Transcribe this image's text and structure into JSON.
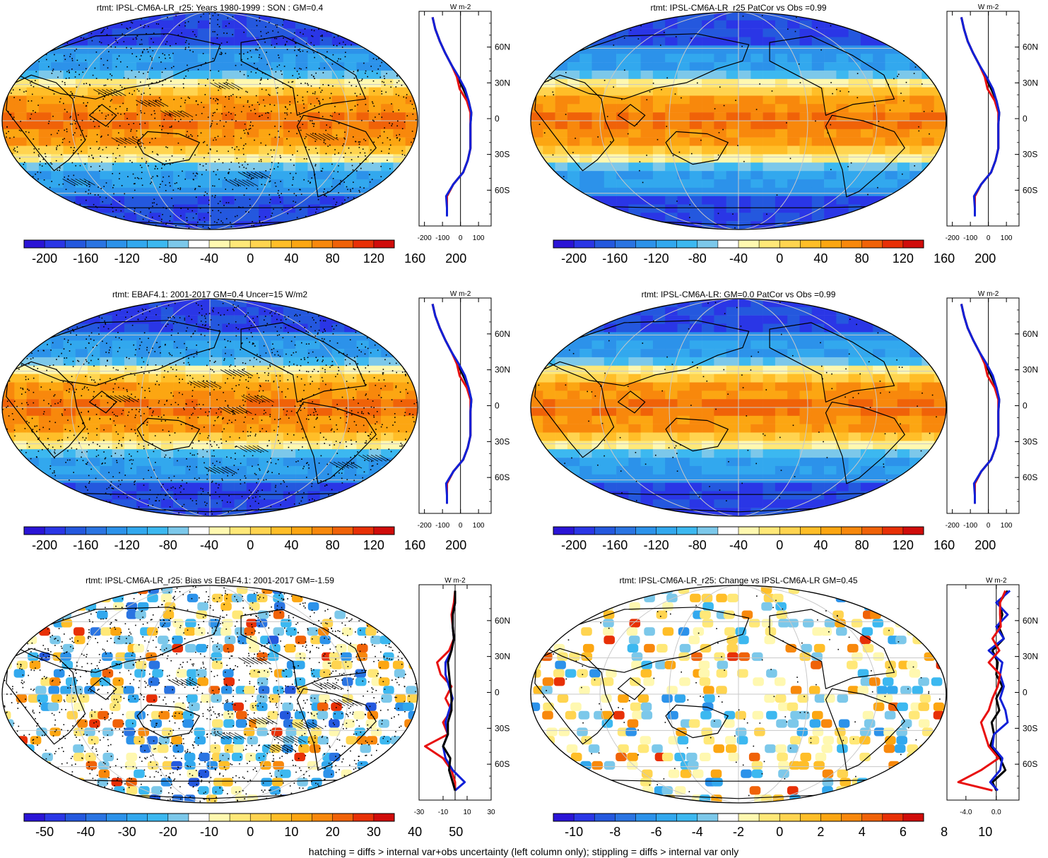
{
  "footer": "hatching = diffs > internal var+obs uncertainty (left column only); stippling = diffs > internal var only",
  "colors": {
    "scale": [
      "#2a14d6",
      "#2a36e6",
      "#2458de",
      "#2a74e2",
      "#2c92ea",
      "#32a8ee",
      "#3cb8f0",
      "#7cc8ea",
      "#ffffff",
      "#fff8b0",
      "#ffe878",
      "#ffd450",
      "#ffbe28",
      "#fca612",
      "#f8880c",
      "#f06208",
      "#e83006",
      "#d00c0a"
    ],
    "coast": "#000000",
    "grid": "#c8c8c8",
    "model_line": "#000000",
    "obs_line": "#e81010",
    "alt_line": "#1020d8"
  },
  "panels": [
    {
      "title": "rtmt: IPSL-CM6A-LR_r25: Years 1980-1999 : SON : GM=0.4",
      "field": "mean",
      "stipple": "dense",
      "hatch": true,
      "colorbar_labels": [
        "-200",
        "-160",
        "-120",
        "-80",
        "-40",
        "0",
        "40",
        "80",
        "120",
        "160",
        "200"
      ]
    },
    {
      "title": "rtmt: IPSL-CM6A-LR_r25 PatCor vs Obs =0.99",
      "field": "mean",
      "stipple": "sparse",
      "hatch": false,
      "colorbar_labels": [
        "-200",
        "-160",
        "-120",
        "-80",
        "-40",
        "0",
        "40",
        "80",
        "120",
        "160",
        "200"
      ]
    },
    {
      "title": "rtmt: EBAF4.1: 2001-2017 GM=0.4 Uncer=15 W/m2",
      "field": "mean",
      "stipple": "dense",
      "hatch": true,
      "colorbar_labels": [
        "-200",
        "-160",
        "-120",
        "-80",
        "-40",
        "0",
        "40",
        "80",
        "120",
        "160",
        "200"
      ]
    },
    {
      "title": "rtmt: IPSL-CM6A-LR: GM=0.0 PatCor vs Obs =0.99",
      "field": "mean",
      "stipple": "sparse",
      "hatch": false,
      "colorbar_labels": [
        "-200",
        "-160",
        "-120",
        "-80",
        "-40",
        "0",
        "40",
        "80",
        "120",
        "160",
        "200"
      ]
    },
    {
      "title": "rtmt: IPSL-CM6A-LR_r25: Bias vs EBAF4.1: 2001-2017  GM=-1.59",
      "field": "bias",
      "stipple": "dense",
      "hatch": true,
      "colorbar_labels": [
        "-50",
        "-40",
        "-30",
        "-20",
        "-10",
        "0",
        "10",
        "20",
        "30",
        "40",
        "50"
      ]
    },
    {
      "title": "rtmt: IPSL-CM6A-LR_r25: Change vs IPSL-CM6A-LR GM=0.45",
      "field": "change",
      "stipple": "sparse",
      "hatch": false,
      "colorbar_labels": [
        "-10",
        "-8",
        "-6",
        "-4",
        "-2",
        "0",
        "2",
        "4",
        "6",
        "8",
        "10"
      ]
    }
  ],
  "chart_data": {
    "type": "line",
    "profiles": [
      {
        "unit": "W m-2",
        "lat_labels": [
          "60N",
          "30N",
          "0",
          "30S",
          "60S"
        ],
        "x_labels": [
          "-200",
          "-100",
          "0",
          "100"
        ],
        "xlim": [
          -230,
          170
        ],
        "lat": [
          85,
          75,
          65,
          55,
          45,
          35,
          25,
          15,
          5,
          -5,
          -15,
          -25,
          -35,
          -45,
          -55,
          -65,
          -75,
          -82
        ],
        "series": [
          {
            "role": "model",
            "values": [
              -155,
              -140,
              -115,
              -85,
              -50,
              -15,
              15,
              45,
              60,
              55,
              55,
              55,
              40,
              15,
              -40,
              -75,
              -75,
              -75
            ]
          },
          {
            "role": "obs",
            "values": [
              -155,
              -140,
              -115,
              -85,
              -50,
              -20,
              -5,
              35,
              55,
              55,
              55,
              55,
              40,
              15,
              -40,
              -75,
              -75,
              -75
            ]
          },
          {
            "role": "alt",
            "values": [
              -155,
              -140,
              -115,
              -85,
              -50,
              -10,
              25,
              45,
              60,
              55,
              55,
              55,
              40,
              15,
              -40,
              -80,
              -75,
              -75
            ]
          }
        ]
      },
      {
        "unit": "W m-2",
        "lat_labels": [
          "60N",
          "30N",
          "0",
          "30S",
          "60S"
        ],
        "x_labels": [
          "-200",
          "-100",
          "0",
          "100"
        ],
        "xlim": [
          -230,
          170
        ],
        "lat": [
          85,
          75,
          65,
          55,
          45,
          35,
          25,
          15,
          5,
          -5,
          -15,
          -25,
          -35,
          -45,
          -55,
          -65,
          -75,
          -82
        ],
        "series": [
          {
            "role": "model",
            "values": [
              -150,
              -135,
              -115,
              -85,
              -50,
              -15,
              15,
              45,
              60,
              55,
              55,
              55,
              40,
              15,
              -40,
              -75,
              -75,
              -75
            ]
          },
          {
            "role": "obs",
            "values": [
              -150,
              -135,
              -115,
              -85,
              -50,
              -20,
              -5,
              35,
              55,
              55,
              55,
              55,
              40,
              15,
              -40,
              -75,
              -75,
              -75
            ]
          },
          {
            "role": "alt",
            "values": [
              -150,
              -135,
              -115,
              -85,
              -50,
              -10,
              25,
              45,
              60,
              55,
              55,
              55,
              40,
              15,
              -40,
              -80,
              -75,
              -75
            ]
          }
        ]
      },
      {
        "unit": "W m-2",
        "lat_labels": [
          "60N",
          "30N",
          "0",
          "30S",
          "60S"
        ],
        "x_labels": [
          "-200",
          "-100",
          "0",
          "100"
        ],
        "xlim": [
          -230,
          170
        ],
        "lat": [
          85,
          75,
          65,
          55,
          45,
          35,
          25,
          15,
          5,
          -5,
          -15,
          -25,
          -35,
          -45,
          -55,
          -65,
          -75,
          -82
        ],
        "series": [
          {
            "role": "model",
            "values": [
              -155,
              -140,
              -115,
              -85,
              -50,
              -15,
              15,
              45,
              60,
              55,
              55,
              55,
              40,
              15,
              -40,
              -75,
              -75,
              -75
            ]
          },
          {
            "role": "obs",
            "values": [
              -155,
              -140,
              -115,
              -85,
              -50,
              -20,
              -5,
              35,
              55,
              55,
              55,
              55,
              40,
              15,
              -40,
              -75,
              -75,
              -75
            ]
          },
          {
            "role": "alt",
            "values": [
              -155,
              -140,
              -115,
              -85,
              -50,
              -10,
              25,
              45,
              60,
              55,
              55,
              55,
              40,
              15,
              -40,
              -80,
              -75,
              -75
            ]
          }
        ]
      },
      {
        "unit": "W m-2",
        "lat_labels": [
          "60N",
          "30N",
          "0",
          "30S",
          "60S"
        ],
        "x_labels": [
          "-200",
          "-100",
          "0",
          "100"
        ],
        "xlim": [
          -230,
          170
        ],
        "lat": [
          85,
          75,
          65,
          55,
          45,
          35,
          25,
          15,
          5,
          -5,
          -15,
          -25,
          -35,
          -45,
          -55,
          -65,
          -75,
          -82
        ],
        "series": [
          {
            "role": "model",
            "values": [
              -150,
              -135,
              -115,
              -85,
              -50,
              -15,
              15,
              45,
              60,
              55,
              55,
              55,
              40,
              15,
              -40,
              -75,
              -75,
              -75
            ]
          },
          {
            "role": "obs",
            "values": [
              -150,
              -135,
              -115,
              -85,
              -50,
              -20,
              -5,
              35,
              55,
              55,
              55,
              55,
              40,
              15,
              -40,
              -75,
              -75,
              -75
            ]
          },
          {
            "role": "alt",
            "values": [
              -150,
              -135,
              -115,
              -85,
              -50,
              -10,
              25,
              45,
              60,
              55,
              55,
              55,
              40,
              15,
              -40,
              -80,
              -75,
              -75
            ]
          }
        ]
      },
      {
        "unit": "W m-2",
        "lat_labels": [
          "60N",
          "30N",
          "0",
          "30S",
          "60S"
        ],
        "x_labels": [
          "-30",
          "-10",
          "10",
          "30"
        ],
        "xlim": [
          -30,
          30
        ],
        "lat": [
          85,
          75,
          65,
          55,
          45,
          35,
          25,
          15,
          5,
          -5,
          -15,
          -25,
          -35,
          -45,
          -55,
          -65,
          -75,
          -82
        ],
        "series": [
          {
            "role": "obs",
            "values": [
              0,
              -1,
              -3,
              -2,
              -1,
              -5,
              -15,
              -12,
              -3,
              -8,
              -3,
              -10,
              -6,
              -25,
              -10,
              -3,
              0,
              0
            ]
          },
          {
            "role": "alt",
            "values": [
              0,
              0,
              -2,
              -2,
              -1,
              -3,
              -8,
              -8,
              -5,
              -2,
              -5,
              -8,
              -6,
              -10,
              -8,
              -2,
              8,
              0
            ]
          },
          {
            "role": "model",
            "values": [
              0,
              0,
              -2,
              -2,
              -1,
              -3,
              -6,
              -5,
              -4,
              -3,
              -3,
              -6,
              -6,
              -10,
              -4,
              -5,
              -2,
              0
            ]
          }
        ]
      },
      {
        "unit": "W m-2",
        "lat_labels": [
          "60N",
          "30N",
          "0",
          "30S",
          "60S"
        ],
        "x_labels": [
          "-4.0",
          "0.0"
        ],
        "xlim": [
          -6.5,
          3.0
        ],
        "lat": [
          85,
          75,
          65,
          55,
          45,
          35,
          25,
          15,
          5,
          -5,
          -15,
          -25,
          -35,
          -45,
          -55,
          -65,
          -75,
          -82
        ],
        "series": [
          {
            "role": "model",
            "values": [
              1.5,
              0.4,
              0.8,
              0.3,
              1.0,
              -0.5,
              0.2,
              0.0,
              0.8,
              0.0,
              0.4,
              -0.6,
              -0.3,
              -0.8,
              0.5,
              1.2,
              -0.5,
              0.0
            ]
          },
          {
            "role": "alt",
            "values": [
              1.8,
              0.0,
              1.5,
              0.0,
              1.0,
              -1.0,
              0.8,
              0.5,
              1.0,
              0.5,
              1.2,
              1.5,
              -0.3,
              -0.5,
              0.8,
              0.5,
              -0.8,
              0.2
            ]
          },
          {
            "role": "obs",
            "values": [
              1.2,
              0.5,
              0.5,
              0.6,
              -0.5,
              0.4,
              -1.0,
              0.5,
              0.2,
              -0.5,
              -1.0,
              -2.0,
              -1.5,
              -1.0,
              0.3,
              -2.0,
              -5.0,
              -0.5
            ]
          }
        ]
      }
    ]
  }
}
